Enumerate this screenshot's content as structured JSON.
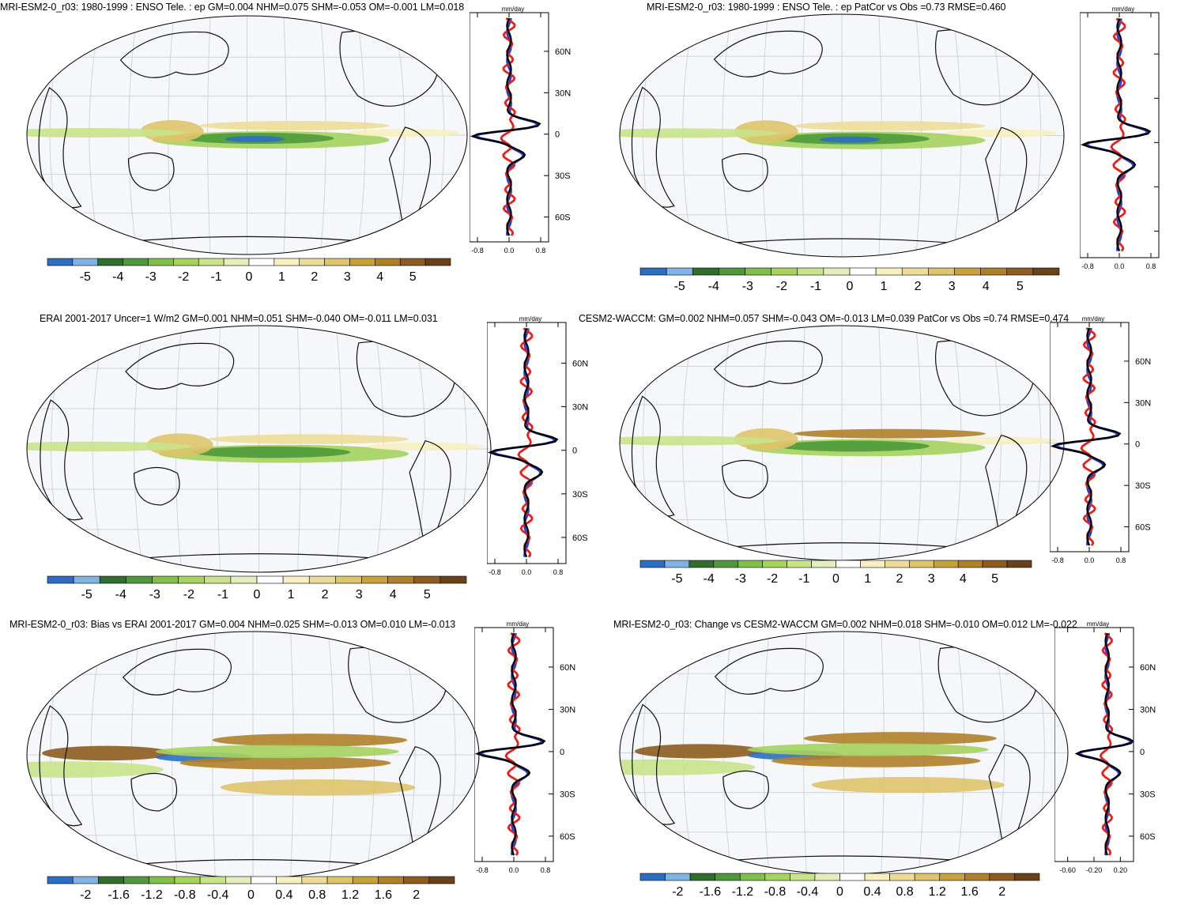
{
  "chart_data": [
    {
      "type": "heatmap",
      "title": "MRI-ESM2-0_r03: 1980-1999 : ENSO Tele. : ep GM=0.004 NHM=0.075 SHM=-0.053 OM=-0.001 LM=0.018",
      "colorbar": {
        "tick_labels": [
          "-5",
          "-4",
          "-3",
          "-2",
          "-1",
          "0",
          "1",
          "2",
          "3",
          "4",
          "5"
        ]
      },
      "zonal_mean": {
        "unit_label": "mm/day",
        "x_tick_labels": [
          "-0.8",
          "0.0",
          "0.8"
        ],
        "y_tick_labels": [
          "60N",
          "30N",
          "0",
          "30S",
          "60S"
        ],
        "x_range": [
          -1.0,
          1.0
        ],
        "y_range": [
          -78,
          88
        ],
        "series_colors": [
          "#1f3fd6",
          "#e8201c",
          "#000000"
        ]
      }
    },
    {
      "type": "heatmap",
      "title": "MRI-ESM2-0_r03: 1980-1999 : ENSO Tele. : ep PatCor vs Obs =0.73 RMSE=0.460",
      "colorbar": {
        "tick_labels": [
          "-5",
          "-4",
          "-3",
          "-2",
          "-1",
          "0",
          "1",
          "2",
          "3",
          "4",
          "5"
        ]
      },
      "zonal_mean": {
        "unit_label": "mm/day",
        "x_tick_labels": [
          "-0.8",
          "0.0",
          "0.8"
        ],
        "y_tick_labels": [],
        "x_range": [
          -1.0,
          1.0
        ],
        "y_range": [
          -78,
          88
        ],
        "series_colors": [
          "#1f3fd6",
          "#e8201c",
          "#000000"
        ]
      }
    },
    {
      "type": "heatmap",
      "title": "ERAI 2001-2017 Uncer=1 W/m2 GM=0.001 NHM=0.051 SHM=-0.040 OM=-0.011 LM=0.031",
      "colorbar": {
        "tick_labels": [
          "-5",
          "-4",
          "-3",
          "-2",
          "-1",
          "0",
          "1",
          "2",
          "3",
          "4",
          "5"
        ]
      },
      "zonal_mean": {
        "unit_label": "mm/day",
        "x_tick_labels": [
          "-0.8",
          "0.0",
          "0.8"
        ],
        "y_tick_labels": [
          "60N",
          "30N",
          "0",
          "30S",
          "60S"
        ],
        "x_range": [
          -1.0,
          1.0
        ],
        "y_range": [
          -78,
          88
        ],
        "series_colors": [
          "#1f3fd6",
          "#e8201c",
          "#000000"
        ]
      }
    },
    {
      "type": "heatmap",
      "title": "CESM2-WACCM: GM=0.002 NHM=0.057 SHM=-0.043 OM=-0.013 LM=0.039 PatCor vs Obs =0.74 RMSE=0.474",
      "colorbar": {
        "tick_labels": [
          "-5",
          "-4",
          "-3",
          "-2",
          "-1",
          "0",
          "1",
          "2",
          "3",
          "4",
          "5"
        ]
      },
      "zonal_mean": {
        "unit_label": "mm/day",
        "x_tick_labels": [
          "-0.8",
          "0.0",
          "0.8"
        ],
        "y_tick_labels": [
          "60N",
          "30N",
          "0",
          "30S",
          "60S"
        ],
        "x_range": [
          -1.0,
          1.0
        ],
        "y_range": [
          -78,
          88
        ],
        "series_colors": [
          "#1f3fd6",
          "#e8201c",
          "#000000"
        ]
      }
    },
    {
      "type": "heatmap",
      "title": "MRI-ESM2-0_r03: Bias vs ERAI 2001-2017 GM=0.004 NHM=0.025 SHM=-0.013 OM=0.010 LM=-0.013",
      "colorbar": {
        "tick_labels": [
          "-2",
          "-1.6",
          "-1.2",
          "-0.8",
          "-0.4",
          "0",
          "0.4",
          "0.8",
          "1.2",
          "1.6",
          "2"
        ]
      },
      "zonal_mean": {
        "unit_label": "mm/day",
        "x_tick_labels": [
          "-0.8",
          "0.0",
          "0.8"
        ],
        "y_tick_labels": [
          "60N",
          "30N",
          "0",
          "30S",
          "60S"
        ],
        "x_range": [
          -1.0,
          1.0
        ],
        "y_range": [
          -78,
          88
        ],
        "series_colors": [
          "#1f3fd6",
          "#e8201c",
          "#000000"
        ]
      }
    },
    {
      "type": "heatmap",
      "title": "MRI-ESM2-0_r03: Change vs CESM2-WACCM GM=0.002 NHM=0.018 SHM=-0.010 OM=0.012 LM=-0.022",
      "colorbar": {
        "tick_labels": [
          "-2",
          "-1.6",
          "-1.2",
          "-0.8",
          "-0.4",
          "0",
          "0.4",
          "0.8",
          "1.2",
          "1.6",
          "2"
        ]
      },
      "zonal_mean": {
        "unit_label": "mm/day",
        "x_tick_labels": [
          "-0.60",
          "-0.20",
          "0.20"
        ],
        "y_tick_labels": [
          "60N",
          "30N",
          "0",
          "30S",
          "60S"
        ],
        "x_range": [
          -0.8,
          0.4
        ],
        "y_range": [
          -78,
          88
        ],
        "series_colors": [
          "#1f3fd6",
          "#e8201c",
          "#000000"
        ]
      }
    }
  ]
}
